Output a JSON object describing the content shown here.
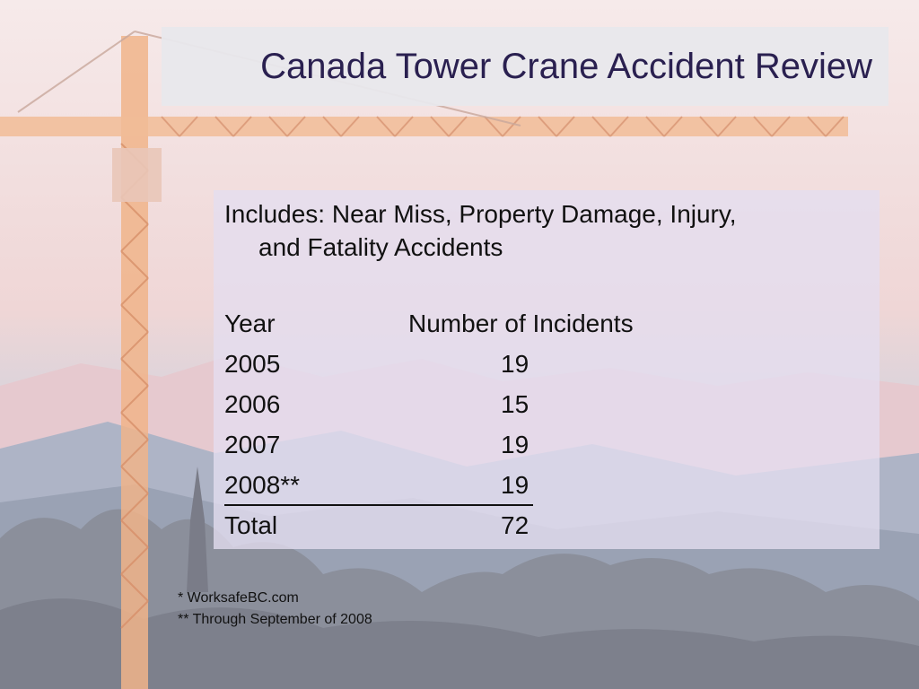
{
  "slide": {
    "title": "Canada Tower Crane Accident Review",
    "includes_line1": "Includes: Near Miss, Property Damage, Injury,",
    "includes_line2": "and Fatality Accidents",
    "table": {
      "header": {
        "year": "Year",
        "count": "Number of Incidents"
      },
      "rows": [
        {
          "year": "2005",
          "count": "19"
        },
        {
          "year": "2006",
          "count": "15"
        },
        {
          "year": "2007",
          "count": "19"
        },
        {
          "year": "2008**",
          "count": "19"
        }
      ],
      "total": {
        "label": "Total",
        "count": "72"
      }
    },
    "footnotes": [
      "* WorksafeBC.com",
      "** Through September of 2008"
    ]
  },
  "colors": {
    "title_text": "#2a2050",
    "panel_bg": "#e4def0",
    "text": "#111111"
  }
}
